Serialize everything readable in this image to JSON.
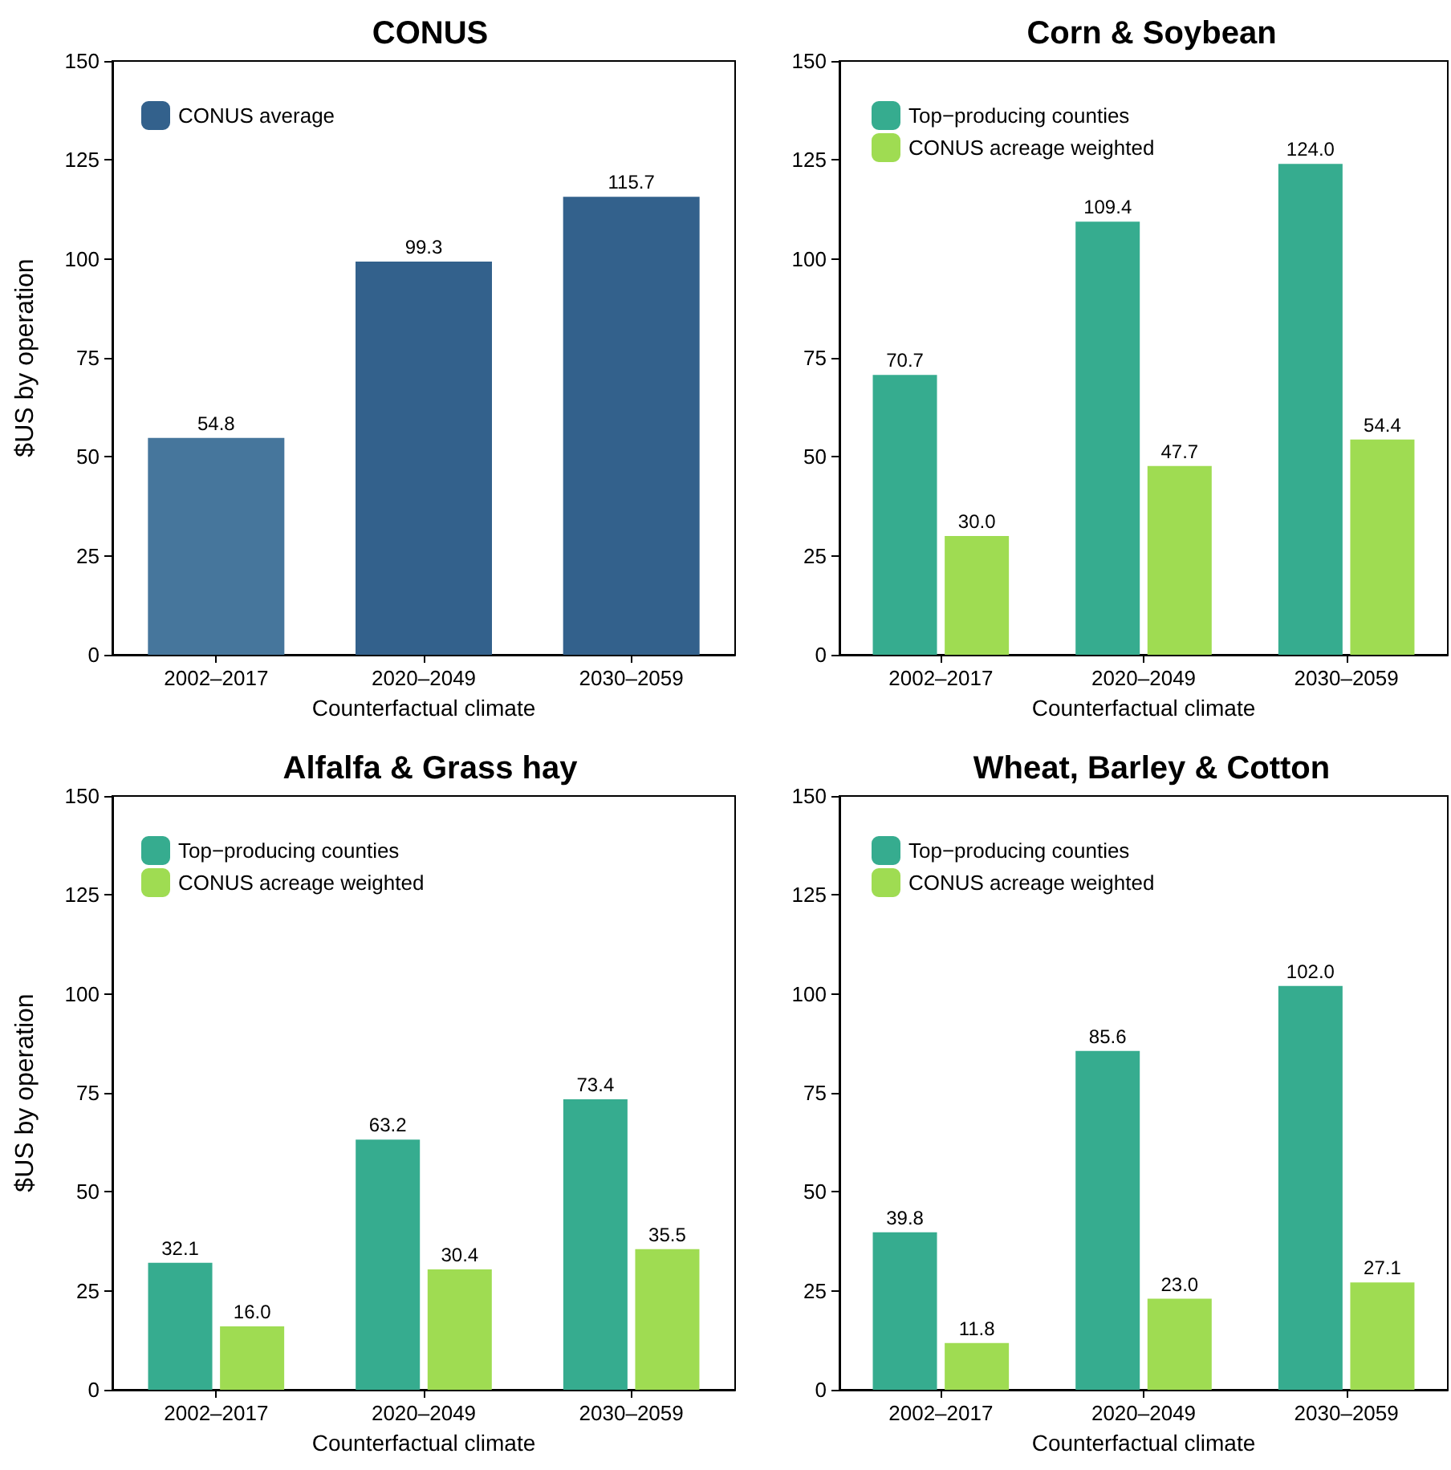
{
  "chart_data": [
    {
      "type": "bar",
      "title": "CONUS",
      "xlabel": "Counterfactual climate",
      "ylabel": "$US by operation",
      "categories": [
        "2002–2017",
        "2020–2049",
        "2030–2059"
      ],
      "ylim": [
        0,
        150
      ],
      "yticks": [
        0,
        25,
        50,
        75,
        100,
        125,
        150
      ],
      "legend": "top left",
      "series": [
        {
          "name": "CONUS average",
          "color": "#33618c",
          "colors": [
            "#46769c",
            "#33618c",
            "#33618c"
          ],
          "values": [
            54.8,
            99.3,
            115.7
          ],
          "value_labels": [
            "54.8",
            "99.3",
            "115.7"
          ]
        }
      ]
    },
    {
      "type": "bar",
      "title": "Corn & Soybean",
      "xlabel": "Counterfactual climate",
      "categories": [
        "2002–2017",
        "2020–2049",
        "2030–2059"
      ],
      "ylim": [
        0,
        150
      ],
      "yticks": [
        0,
        25,
        50,
        75,
        100,
        125,
        150
      ],
      "legend": "top left",
      "series": [
        {
          "name": "Top−producing counties",
          "color": "#36ac8f",
          "values": [
            70.7,
            109.4,
            124.0
          ],
          "value_labels": [
            "70.7",
            "109.4",
            "124.0"
          ]
        },
        {
          "name": "CONUS acreage weighted",
          "color": "#9fdc52",
          "values": [
            30.0,
            47.7,
            54.4
          ],
          "value_labels": [
            "30.0",
            "47.7",
            "54.4"
          ]
        }
      ]
    },
    {
      "type": "bar",
      "title": "Alfalfa & Grass hay",
      "xlabel": "Counterfactual climate",
      "ylabel": "$US by operation",
      "categories": [
        "2002–2017",
        "2020–2049",
        "2030–2059"
      ],
      "ylim": [
        0,
        150
      ],
      "yticks": [
        0,
        25,
        50,
        75,
        100,
        125,
        150
      ],
      "legend": "top left",
      "series": [
        {
          "name": "Top−producing counties",
          "color": "#36ac8f",
          "values": [
            32.1,
            63.2,
            73.4
          ],
          "value_labels": [
            "32.1",
            "63.2",
            "73.4"
          ]
        },
        {
          "name": "CONUS acreage weighted",
          "color": "#9fdc52",
          "values": [
            16.0,
            30.4,
            35.5
          ],
          "value_labels": [
            "16.0",
            "30.4",
            "35.5"
          ]
        }
      ]
    },
    {
      "type": "bar",
      "title": "Wheat, Barley & Cotton",
      "xlabel": "Counterfactual climate",
      "categories": [
        "2002–2017",
        "2020–2049",
        "2030–2059"
      ],
      "ylim": [
        0,
        150
      ],
      "yticks": [
        0,
        25,
        50,
        75,
        100,
        125,
        150
      ],
      "legend": "top left",
      "series": [
        {
          "name": "Top−producing counties",
          "color": "#36ac8f",
          "values": [
            39.8,
            85.6,
            102.0
          ],
          "value_labels": [
            "39.8",
            "85.6",
            "102.0"
          ]
        },
        {
          "name": "CONUS acreage weighted",
          "color": "#9fdc52",
          "values": [
            11.8,
            23.0,
            27.1
          ],
          "value_labels": [
            "11.8",
            "23.0",
            "27.1"
          ]
        }
      ]
    }
  ]
}
